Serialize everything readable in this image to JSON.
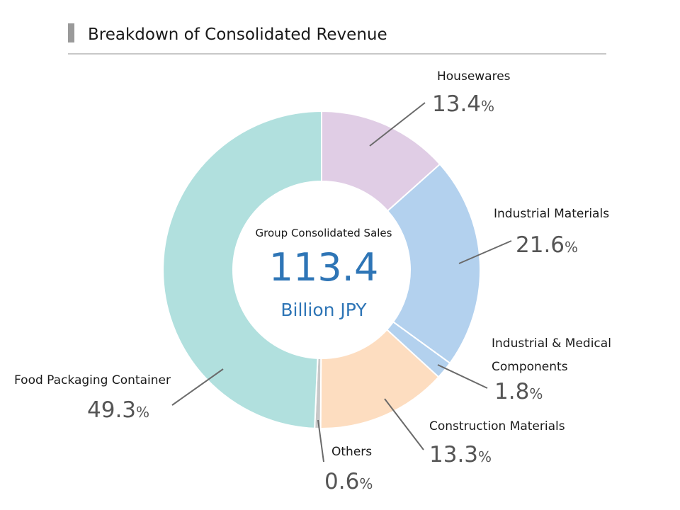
{
  "title": "Breakdown of  Consolidated Revenue",
  "colors": {
    "title_bar": "#9a9a9a",
    "rule": "#c8c8c8",
    "leader": "#6a6a6a",
    "center_text": "#2e75b6"
  },
  "chart_data": {
    "type": "pie",
    "style": "donut",
    "title": "Breakdown of  Consolidated Revenue",
    "center": {
      "label": "Group Consolidated Sales",
      "value": "113.4",
      "unit": "Billion JPY"
    },
    "unit_symbol": "%",
    "slices": [
      {
        "label_lines": [
          "Housewares"
        ],
        "value": 13.4,
        "value_text": "13.4",
        "color": "#e0cde5"
      },
      {
        "label_lines": [
          "Industrial  Materials"
        ],
        "value": 21.6,
        "value_text": "21.6",
        "color": "#b3d1ee"
      },
      {
        "label_lines": [
          "Industrial  & Medical",
          "Components"
        ],
        "value": 1.8,
        "value_text": "1.8",
        "color": "#b3d1ee"
      },
      {
        "label_lines": [
          "Construction  Materials"
        ],
        "value": 13.3,
        "value_text": "13.3",
        "color": "#fdddc0"
      },
      {
        "label_lines": [
          "Others"
        ],
        "value": 0.6,
        "value_text": "0.6",
        "color": "#c8c8c8"
      },
      {
        "label_lines": [
          "Food Packaging Container"
        ],
        "value": 49.3,
        "value_text": "49.3",
        "color": "#b1e0de"
      }
    ]
  }
}
